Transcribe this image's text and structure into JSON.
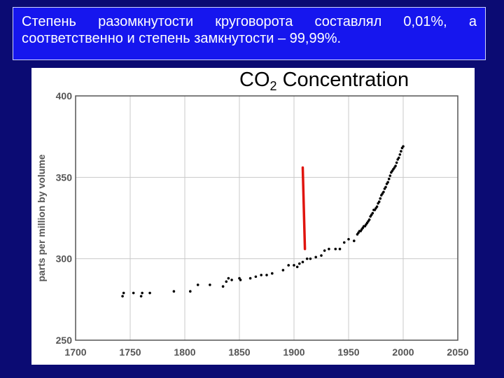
{
  "caption": {
    "line1": "Степень разомкнутости круговорота составлял 0,01%, а",
    "line2": "соответственно и степень замкнутости – 99,99%."
  },
  "chart_data": {
    "type": "scatter",
    "title_main": "CO",
    "title_sub": "2",
    "title_rest": " Concentration",
    "ylabel": "parts per million by volume",
    "xlim": [
      1700,
      2050
    ],
    "ylim": [
      250,
      400
    ],
    "xticks": [
      1700,
      1750,
      1800,
      1850,
      1900,
      1950,
      2000,
      2050
    ],
    "yticks": [
      250,
      300,
      350,
      400
    ],
    "grid": true,
    "series": [
      {
        "color": "#000000",
        "points": [
          [
            1743,
            277
          ],
          [
            1744,
            279
          ],
          [
            1753,
            279
          ],
          [
            1760,
            277
          ],
          [
            1761,
            279
          ],
          [
            1768,
            279
          ],
          [
            1790,
            280
          ],
          [
            1805,
            280
          ],
          [
            1812,
            284
          ],
          [
            1823,
            284
          ],
          [
            1835,
            283
          ],
          [
            1838,
            286
          ],
          [
            1840,
            288
          ],
          [
            1843,
            287
          ],
          [
            1850,
            288
          ],
          [
            1851,
            287
          ],
          [
            1860,
            288
          ],
          [
            1865,
            289
          ],
          [
            1870,
            290
          ],
          [
            1875,
            290
          ],
          [
            1880,
            291
          ],
          [
            1890,
            293
          ],
          [
            1895,
            296
          ],
          [
            1900,
            296
          ],
          [
            1903,
            295
          ],
          [
            1905,
            297
          ],
          [
            1908,
            298
          ],
          [
            1912,
            300
          ],
          [
            1915,
            300
          ],
          [
            1920,
            301
          ],
          [
            1925,
            302
          ],
          [
            1928,
            305
          ],
          [
            1932,
            306
          ],
          [
            1938,
            306
          ],
          [
            1942,
            306
          ],
          [
            1946,
            310
          ],
          [
            1950,
            312
          ],
          [
            1955,
            311
          ],
          [
            1958,
            315
          ],
          [
            1959,
            316
          ],
          [
            1960,
            317
          ],
          [
            1961,
            317
          ],
          [
            1962,
            318
          ],
          [
            1963,
            319
          ],
          [
            1964,
            320
          ],
          [
            1965,
            320
          ],
          [
            1966,
            321
          ],
          [
            1967,
            322
          ],
          [
            1968,
            323
          ],
          [
            1969,
            324
          ],
          [
            1970,
            326
          ],
          [
            1971,
            327
          ],
          [
            1972,
            328
          ],
          [
            1973,
            330
          ],
          [
            1974,
            330
          ],
          [
            1975,
            331
          ],
          [
            1976,
            332
          ],
          [
            1977,
            334
          ],
          [
            1978,
            335
          ],
          [
            1979,
            337
          ],
          [
            1980,
            339
          ],
          [
            1981,
            340
          ],
          [
            1982,
            341
          ],
          [
            1983,
            343
          ],
          [
            1984,
            344
          ],
          [
            1985,
            346
          ],
          [
            1986,
            347
          ],
          [
            1987,
            349
          ],
          [
            1988,
            351
          ],
          [
            1989,
            353
          ],
          [
            1990,
            354
          ],
          [
            1991,
            355
          ],
          [
            1992,
            356
          ],
          [
            1993,
            357
          ],
          [
            1994,
            359
          ],
          [
            1995,
            361
          ],
          [
            1996,
            362
          ],
          [
            1997,
            364
          ],
          [
            1998,
            366
          ],
          [
            1999,
            368
          ],
          [
            2000,
            369
          ]
        ]
      }
    ],
    "annotation_line": {
      "color": "#e0140e",
      "x": [
        1908,
        1910
      ],
      "y": [
        356,
        306
      ]
    }
  }
}
